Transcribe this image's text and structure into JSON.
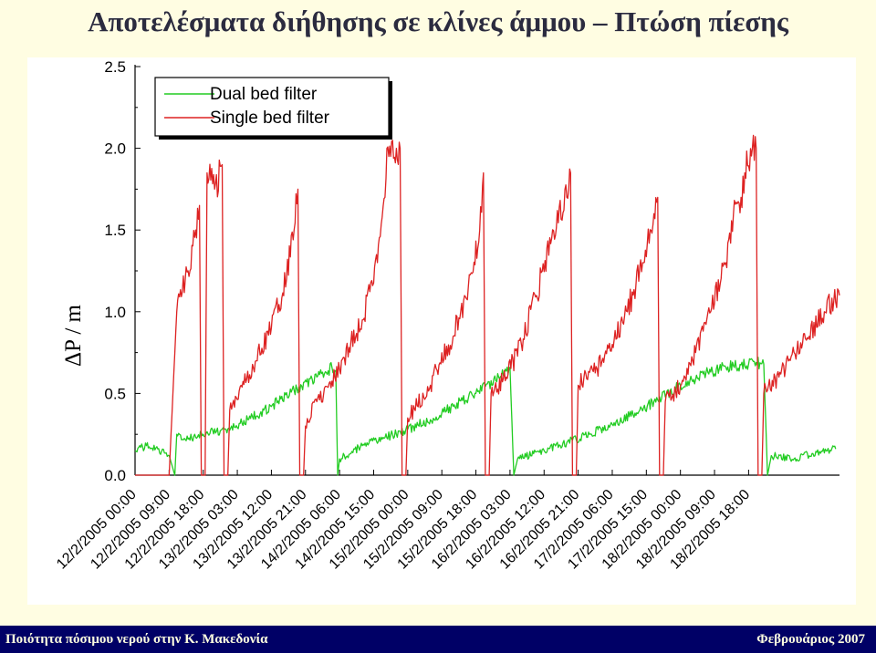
{
  "slide": {
    "title": "Αποτελέσματα διήθησης σε κλίνες άμμου – Πτώση πίεσης",
    "footer_left": "Ποιότητα πόσιμου νερού στην Κ. Μακεδονία",
    "footer_right": "Φεβρουάριος 2007"
  },
  "colors": {
    "background": "#fffde2",
    "footer": "#000066",
    "dual": "#22cc22",
    "single": "#dd2222"
  },
  "chart_data": {
    "type": "line",
    "title": "",
    "xlabel": "",
    "ylabel": "ΔP / m",
    "ylim": [
      0,
      2.5
    ],
    "yticks": [
      "0.0",
      "0.5",
      "1.0",
      "1.5",
      "2.0",
      "2.5"
    ],
    "xtick_labels": [
      "12/2/2005 00:00",
      "12/2/2005 09:00",
      "12/2/2005 18:00",
      "13/2/2005 03:00",
      "13/2/2005 12:00",
      "13/2/2005 21:00",
      "14/2/2005 06:00",
      "14/2/2005 15:00",
      "15/2/2005 00:00",
      "15/2/2005 09:00",
      "15/2/2005 18:00",
      "16/2/2005 03:00",
      "16/2/2005 12:00",
      "16/2/2005 21:00",
      "17/2/2005 06:00",
      "17/2/2005 15:00",
      "18/2/2005 00:00",
      "18/2/2005 09:00",
      "18/2/2005 18:00"
    ],
    "x_hours_range": [
      0,
      186
    ],
    "legend_position": "top-left",
    "series": [
      {
        "name": "Dual bed filter",
        "color": "#22cc22",
        "points": [
          [
            0,
            0.15
          ],
          [
            3,
            0.18
          ],
          [
            6,
            0.16
          ],
          [
            9,
            0.12
          ],
          [
            10.5,
            0.0
          ],
          [
            11,
            0.25
          ],
          [
            14,
            0.22
          ],
          [
            18,
            0.25
          ],
          [
            24,
            0.28
          ],
          [
            30,
            0.34
          ],
          [
            36,
            0.42
          ],
          [
            42,
            0.52
          ],
          [
            48,
            0.6
          ],
          [
            50,
            0.62
          ],
          [
            52,
            0.66
          ],
          [
            53,
            0.64
          ],
          [
            53.5,
            0.0
          ],
          [
            54,
            0.1
          ],
          [
            60,
            0.18
          ],
          [
            66,
            0.23
          ],
          [
            72,
            0.28
          ],
          [
            78,
            0.34
          ],
          [
            84,
            0.42
          ],
          [
            90,
            0.5
          ],
          [
            96,
            0.6
          ],
          [
            99,
            0.66
          ],
          [
            100,
            0.0
          ],
          [
            101,
            0.1
          ],
          [
            108,
            0.15
          ],
          [
            114,
            0.2
          ],
          [
            120,
            0.25
          ],
          [
            126,
            0.31
          ],
          [
            132,
            0.38
          ],
          [
            138,
            0.46
          ],
          [
            144,
            0.55
          ],
          [
            150,
            0.62
          ],
          [
            156,
            0.66
          ],
          [
            162,
            0.68
          ],
          [
            164,
            0.69
          ],
          [
            166,
            0.68
          ],
          [
            167,
            0.0
          ],
          [
            168,
            0.12
          ],
          [
            174,
            0.1
          ],
          [
            180,
            0.14
          ],
          [
            185,
            0.16
          ]
        ]
      },
      {
        "name": "Single bed filter",
        "color": "#dd2222",
        "points": [
          [
            0,
            0.0
          ],
          [
            9,
            0.0
          ],
          [
            11,
            1.0
          ],
          [
            14,
            1.25
          ],
          [
            16,
            1.5
          ],
          [
            17,
            1.65
          ],
          [
            17.5,
            0.0
          ],
          [
            18.5,
            0.0
          ],
          [
            19,
            1.85
          ],
          [
            21,
            1.75
          ],
          [
            23,
            1.9
          ],
          [
            23.5,
            0.0
          ],
          [
            24.5,
            0.0
          ],
          [
            25,
            0.4
          ],
          [
            28,
            0.55
          ],
          [
            32,
            0.7
          ],
          [
            36,
            0.9
          ],
          [
            40,
            1.2
          ],
          [
            42,
            1.5
          ],
          [
            43,
            1.75
          ],
          [
            43.5,
            0.0
          ],
          [
            44.5,
            0.0
          ],
          [
            45,
            0.3
          ],
          [
            48,
            0.45
          ],
          [
            54,
            0.65
          ],
          [
            60,
            0.95
          ],
          [
            64,
            1.3
          ],
          [
            66,
            1.7
          ],
          [
            66.5,
            2.0
          ],
          [
            69,
            2.0
          ],
          [
            70,
            2.0
          ],
          [
            70.5,
            0.0
          ],
          [
            71.5,
            0.0
          ],
          [
            72,
            0.35
          ],
          [
            78,
            0.55
          ],
          [
            84,
            0.85
          ],
          [
            88,
            1.15
          ],
          [
            91,
            1.5
          ],
          [
            92,
            1.85
          ],
          [
            92.5,
            0.0
          ],
          [
            93.5,
            0.0
          ],
          [
            94,
            0.5
          ],
          [
            98,
            0.6
          ],
          [
            102,
            0.8
          ],
          [
            106,
            1.1
          ],
          [
            110,
            1.45
          ],
          [
            114,
            1.7
          ],
          [
            115,
            1.85
          ],
          [
            115.5,
            0.0
          ],
          [
            116.5,
            0.0
          ],
          [
            117,
            0.55
          ],
          [
            122,
            0.65
          ],
          [
            126,
            0.8
          ],
          [
            130,
            1.0
          ],
          [
            134,
            1.3
          ],
          [
            137,
            1.6
          ],
          [
            138,
            1.7
          ],
          [
            138.5,
            0.0
          ],
          [
            139.5,
            0.0
          ],
          [
            140,
            0.45
          ],
          [
            144,
            0.55
          ],
          [
            148,
            0.75
          ],
          [
            152,
            1.0
          ],
          [
            156,
            1.3
          ],
          [
            158,
            1.6
          ],
          [
            160,
            1.7
          ],
          [
            161,
            1.85
          ],
          [
            163,
            2.0
          ],
          [
            164,
            2.0
          ],
          [
            164.5,
            0.0
          ],
          [
            165.5,
            0.0
          ],
          [
            166,
            0.5
          ],
          [
            170,
            0.6
          ],
          [
            174,
            0.75
          ],
          [
            178,
            0.85
          ],
          [
            182,
            1.0
          ],
          [
            186,
            1.1
          ]
        ]
      }
    ]
  }
}
